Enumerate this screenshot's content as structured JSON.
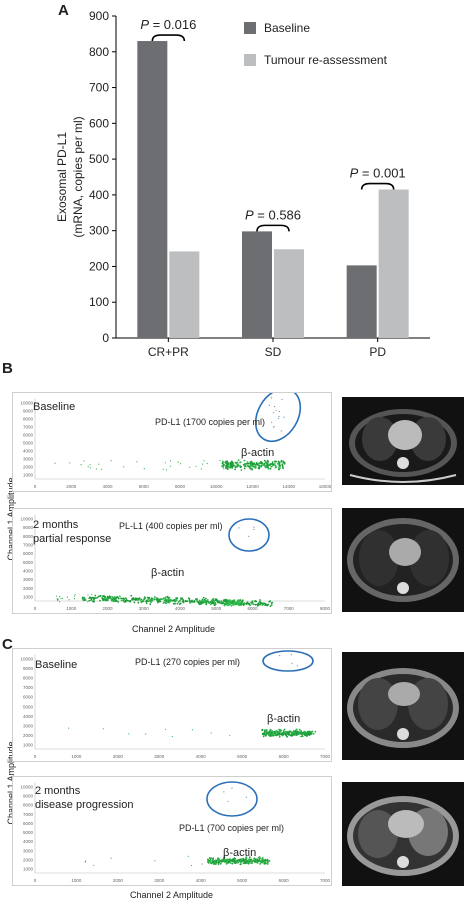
{
  "panel_a": {
    "letter": "A",
    "chart_data": {
      "type": "bar",
      "categories": [
        "CR+PR",
        "SD",
        "PD"
      ],
      "series": [
        {
          "name": "Baseline",
          "values": [
            830,
            298,
            203
          ],
          "color": "#6d6e71"
        },
        {
          "name": "Tumour re-assessment",
          "values": [
            242,
            248,
            415
          ],
          "color": "#bcbec0"
        }
      ],
      "ylabel_line1": "Exosomal PD-L1",
      "ylabel_line2": "(mRNA, copies per ml)",
      "ylim": [
        0,
        900
      ],
      "yticks": [
        0,
        100,
        200,
        300,
        400,
        500,
        600,
        700,
        800,
        900
      ],
      "annotations": [
        {
          "p_label": "P",
          "p_value": "= 0.016",
          "category": "CR+PR"
        },
        {
          "p_label": "P",
          "p_value": "= 0.586",
          "category": "SD"
        },
        {
          "p_label": "P",
          "p_value": "= 0.001",
          "category": "PD"
        }
      ],
      "legend_position": "top-right",
      "grid": false
    }
  },
  "panel_b": {
    "letter": "B",
    "y_axis_label": "Channel 1 Amplitude",
    "x_axis_label": "Channel 2 Amplitude",
    "plot1": {
      "condition": "Baseline",
      "pdl1_label": "PD-L1 (1700 copies per ml)",
      "actin_label": "β-actin",
      "x_ticks": [
        "0",
        "2000",
        "4000",
        "6000",
        "8000",
        "10000",
        "12000",
        "14000",
        "16000"
      ],
      "y_ticks": [
        "10000",
        "9000",
        "8000",
        "7000",
        "6000",
        "5000",
        "4000",
        "3000",
        "2000",
        "1000"
      ]
    },
    "plot2": {
      "condition_line1": "2 months",
      "condition_line2": "partial response",
      "pdl1_label": "PL-L1 (400 copies per ml)",
      "actin_label": "β-actin",
      "x_ticks": [
        "0",
        "1000",
        "2000",
        "3000",
        "4000",
        "5000",
        "6000",
        "7000",
        "8000"
      ],
      "y_ticks": [
        "10000",
        "9000",
        "8000",
        "7000",
        "6000",
        "5000",
        "4000",
        "3000",
        "2000",
        "1000"
      ]
    }
  },
  "panel_c": {
    "letter": "C",
    "y_axis_label": "Channel 1 Amplitude",
    "x_axis_label": "Channel 2 Amplitude",
    "plot1": {
      "condition": "Baseline",
      "pdl1_label": "PD-L1 (270 copies per ml)",
      "actin_label": "β-actin",
      "x_ticks": [
        "0",
        "1000",
        "2000",
        "3000",
        "4000",
        "5000",
        "6000",
        "7000"
      ],
      "y_ticks": [
        "10000",
        "9000",
        "8000",
        "7000",
        "6000",
        "5000",
        "4000",
        "3000",
        "2000",
        "1000"
      ]
    },
    "plot2": {
      "condition_line1": "2 months",
      "condition_line2": "disease progression",
      "pdl1_label": "PD-L1 (700 copies per ml)",
      "actin_label": "β-actin",
      "x_ticks": [
        "0",
        "1000",
        "2000",
        "3000",
        "4000",
        "5000",
        "6000",
        "7000"
      ],
      "y_ticks": [
        "10000",
        "9000",
        "8000",
        "7000",
        "6000",
        "5000",
        "4000",
        "3000",
        "2000",
        "1000"
      ]
    }
  }
}
